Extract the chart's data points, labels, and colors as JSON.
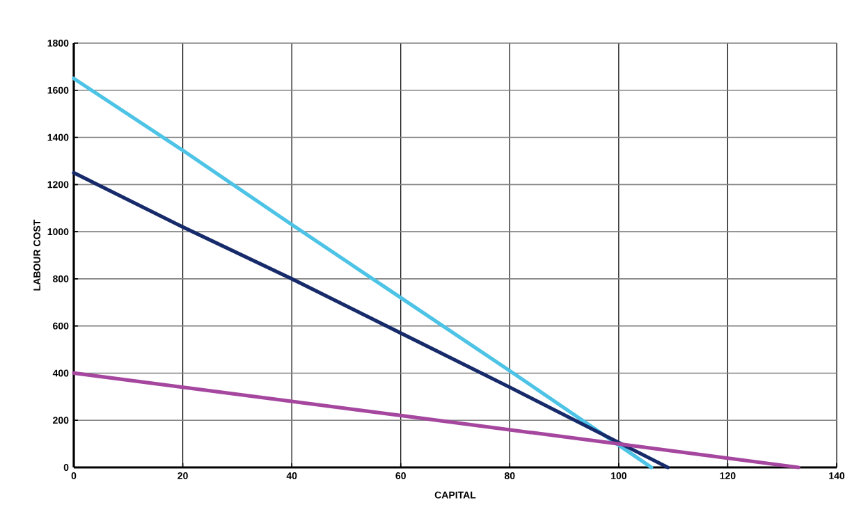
{
  "chart_data": {
    "type": "line",
    "xlabel": "CAPITAL",
    "ylabel": "LABOUR COST",
    "xlim": [
      0,
      140
    ],
    "xticks": [
      0,
      20,
      40,
      60,
      80,
      100,
      120,
      140
    ],
    "ylim": [
      0,
      1800
    ],
    "yticks": [
      0,
      200,
      400,
      600,
      800,
      1000,
      1200,
      1400,
      1600,
      1800
    ],
    "grid": true,
    "marker": "none",
    "line_style": "solid",
    "series": [
      {
        "color": "#4dc3e6",
        "x": [
          0,
          20,
          40,
          60,
          80,
          106
        ],
        "values": [
          1650,
          1345,
          1030,
          720,
          410,
          0
        ]
      },
      {
        "color": "#172b6b",
        "x": [
          0,
          20,
          40,
          60,
          80,
          109
        ],
        "values": [
          1250,
          1020,
          800,
          570,
          340,
          0
        ]
      },
      {
        "color": "#a5479f",
        "x": [
          0,
          60,
          133
        ],
        "values": [
          400,
          220,
          0
        ]
      }
    ]
  }
}
